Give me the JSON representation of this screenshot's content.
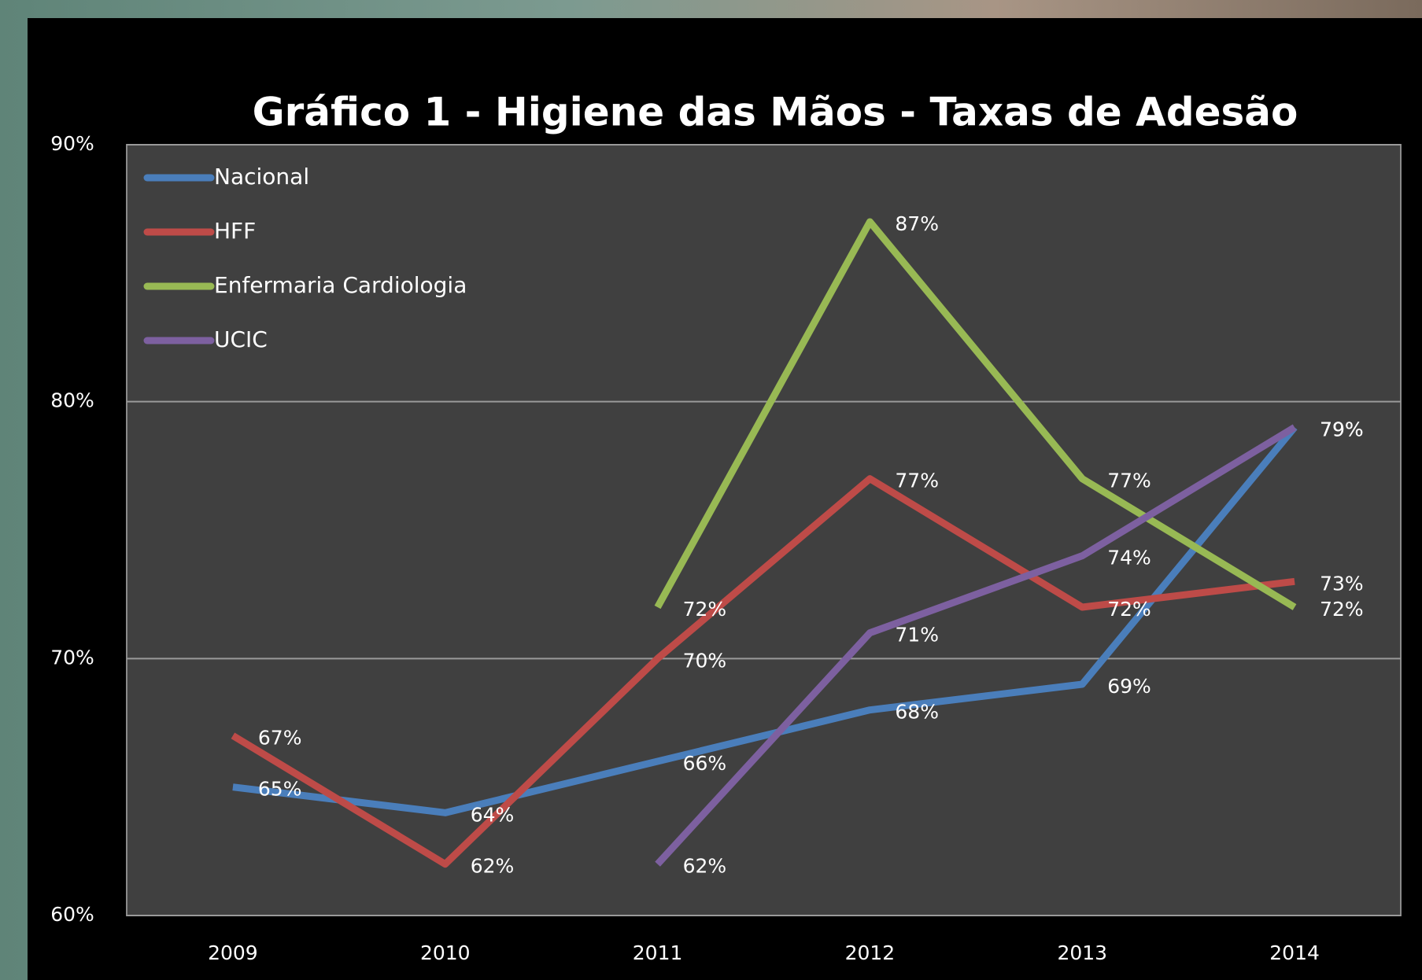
{
  "chart_data": {
    "type": "line",
    "title": "Gráfico 1 - Higiene das Mãos - Taxas de Adesão",
    "categories": [
      "2009",
      "2010",
      "2011",
      "2012",
      "2013",
      "2014"
    ],
    "ylim": [
      60,
      90
    ],
    "yticks": [
      {
        "value": 60,
        "label": "60%"
      },
      {
        "value": 70,
        "label": "70%"
      },
      {
        "value": 80,
        "label": "80%"
      },
      {
        "value": 90,
        "label": "90%"
      }
    ],
    "grid": true,
    "series": [
      {
        "name": "Nacional",
        "color": "#4a7ebb",
        "values": [
          65,
          64,
          66,
          68,
          69,
          79
        ],
        "value_labels": [
          "65%",
          "64%",
          "66%",
          "68%",
          "69%",
          "79%"
        ]
      },
      {
        "name": "HFF",
        "color": "#be4b48",
        "values": [
          67,
          62,
          70,
          77,
          72,
          73
        ],
        "value_labels": [
          "67%",
          "62%",
          "70%",
          "77%",
          "72%",
          "73%"
        ]
      },
      {
        "name": "Enfermaria Cardiologia",
        "color": "#98b954",
        "values": [
          null,
          null,
          72,
          87,
          77,
          72
        ],
        "value_labels": [
          null,
          null,
          "72%",
          "87%",
          "77%",
          "72%"
        ]
      },
      {
        "name": "UCIC",
        "color": "#7d60a0",
        "values": [
          null,
          null,
          62,
          71,
          74,
          79
        ],
        "value_labels": [
          null,
          null,
          "62%",
          "71%",
          "74%",
          "79%"
        ]
      }
    ]
  }
}
